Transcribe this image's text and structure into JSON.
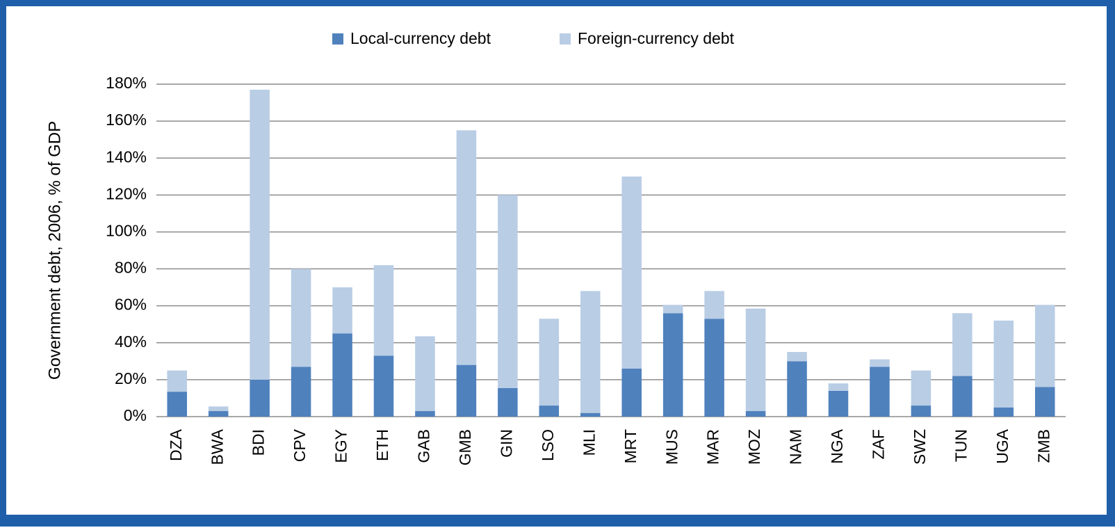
{
  "chart_data": {
    "type": "stacked_bar",
    "y_label": "Government debt, 2006, % of GDP",
    "categories": [
      "DZA",
      "BWA",
      "BDI",
      "CPV",
      "EGY",
      "ETH",
      "GAB",
      "GMB",
      "GIN",
      "LSO",
      "MLI",
      "MRT",
      "MUS",
      "MAR",
      "MOZ",
      "NAM",
      "NGA",
      "ZAF",
      "SWZ",
      "TUN",
      "UGA",
      "ZMB"
    ],
    "series": [
      {
        "name": "Local-currency debt",
        "color": "#4f81bd",
        "values": [
          13.5,
          3,
          20,
          27,
          45,
          33,
          3,
          28,
          15.5,
          6,
          2,
          26,
          56,
          53,
          3,
          30,
          14,
          27,
          6,
          22,
          5,
          16
        ]
      },
      {
        "name": "Foreign-currency debt",
        "color": "#b9cde5",
        "values": [
          11.5,
          2.5,
          157,
          53,
          25,
          49,
          40.5,
          127,
          104.5,
          47,
          66,
          104,
          4.5,
          15,
          55.5,
          5,
          4,
          4,
          19,
          34,
          47,
          44.5
        ]
      }
    ],
    "ylim": [
      0,
      180
    ],
    "yticks": [
      {
        "value": 0,
        "label": "0%"
      },
      {
        "value": 20,
        "label": "20%"
      },
      {
        "value": 40,
        "label": "40%"
      },
      {
        "value": 60,
        "label": "60%"
      },
      {
        "value": 80,
        "label": "80%"
      },
      {
        "value": 100,
        "label": "100%"
      },
      {
        "value": 120,
        "label": "120%"
      },
      {
        "value": 140,
        "label": "140%"
      },
      {
        "value": 160,
        "label": "160%"
      },
      {
        "value": 180,
        "label": "180%"
      }
    ],
    "grid": true
  }
}
